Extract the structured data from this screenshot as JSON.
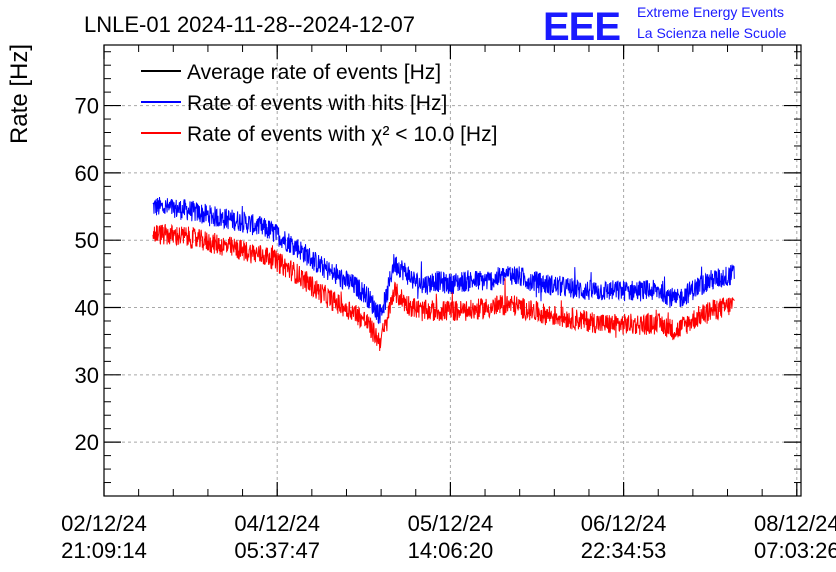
{
  "header": {
    "title": "LNLE-01 2024-11-28--2024-12-07",
    "logo_text": "EEE",
    "logo_line1": "Extreme Energy Events",
    "logo_line2": "La Scienza nelle Scuole"
  },
  "colors": {
    "average": "#000000",
    "hits": "#0000ff",
    "chi2": "#ff0000",
    "logo": "#1a1aff"
  },
  "chart_data": {
    "type": "line",
    "ylabel": "Rate [Hz]",
    "xlabel": "",
    "ylim": [
      12,
      79
    ],
    "xlim": [
      0,
      101.18
    ],
    "x_unit_note": "hours after 02/12/24 21:09:14",
    "yticks": [
      20,
      30,
      40,
      50,
      60,
      70
    ],
    "xticks": [
      {
        "x": 0,
        "line1": "02/12/24",
        "line2": "21:09:14"
      },
      {
        "x": 25.142,
        "line1": "04/12/24",
        "line2": "05:37:47"
      },
      {
        "x": 50.285,
        "line1": "05/12/24",
        "line2": "14:06:20"
      },
      {
        "x": 75.428,
        "line1": "06/12/24",
        "line2": "22:34:53"
      },
      {
        "x": 100.571,
        "line1": "08/12/24",
        "line2": "07:03:26"
      }
    ],
    "grid": true,
    "legend_position": "top-left",
    "series": [
      {
        "name": "Average rate of events [Hz]",
        "color": "#000000",
        "values": []
      },
      {
        "name": "Rate of events with hits [Hz]",
        "color": "#0000ff",
        "x": [
          7.1,
          12,
          16,
          20,
          24,
          28,
          31,
          34,
          36,
          38,
          40,
          41,
          42,
          43,
          44,
          45,
          46,
          47,
          48,
          50,
          53,
          56,
          59,
          62,
          64,
          67,
          70,
          73,
          76,
          79,
          81,
          83,
          84.5,
          86,
          88,
          90,
          91.5
        ],
        "values": [
          55,
          54.5,
          53.5,
          52.8,
          51.5,
          49,
          46.5,
          44.5,
          43.5,
          42,
          39,
          41.5,
          46.5,
          46,
          45,
          44,
          43.5,
          43.5,
          44,
          43.5,
          44,
          44,
          45,
          44,
          43.5,
          43,
          42.5,
          42.5,
          42.5,
          42.5,
          42.5,
          41,
          42,
          43,
          44,
          44.5,
          45
        ]
      },
      {
        "name": "Rate of events with χ² < 10.0 [Hz]",
        "color": "#ff0000",
        "x": [
          7.1,
          12,
          16,
          20,
          24,
          28,
          31,
          34,
          36,
          38,
          40,
          41,
          42,
          43,
          44,
          45,
          46,
          47,
          48,
          50,
          53,
          56,
          59,
          62,
          64,
          67,
          70,
          73,
          76,
          79,
          81,
          83,
          84.5,
          86,
          88,
          90,
          91.5
        ],
        "values": [
          51,
          50.5,
          49.5,
          48.5,
          47.5,
          45,
          42.5,
          40.5,
          39.5,
          38,
          35,
          37.5,
          42.5,
          41.5,
          40.5,
          40,
          39.5,
          39.5,
          39.5,
          39.5,
          39.5,
          40,
          40.5,
          39.5,
          39,
          38.5,
          38,
          37.5,
          37.5,
          37.5,
          37.5,
          36.5,
          37.5,
          38.5,
          39.5,
          40,
          40.5
        ]
      }
    ]
  }
}
